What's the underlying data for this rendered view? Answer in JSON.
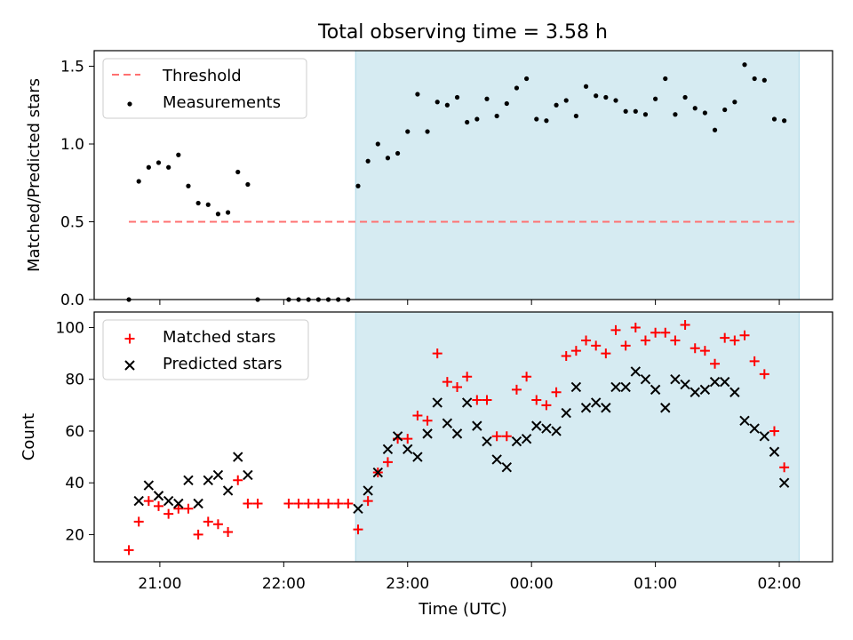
{
  "chart_data": {
    "type": "scatter",
    "title": "Total observing time = 3.58 h",
    "xlabel": "Time (UTC)",
    "x_ticks": [
      "21:00",
      "22:00",
      "23:00",
      "00:00",
      "01:00",
      "02:00"
    ],
    "x_tick_hours": [
      0,
      1,
      2,
      3,
      4,
      5
    ],
    "x_range_hours": [
      -0.53,
      5.43
    ],
    "observing_window_hours": [
      1.58,
      5.16
    ],
    "colors": {
      "threshold": "#ff7070",
      "measurements": "#000000",
      "matched": "#ff0000",
      "predicted": "#000000",
      "window": "#add8e6"
    },
    "panels": [
      {
        "ylabel": "Matched/Predicted stars",
        "ylim": [
          0,
          1.6
        ],
        "y_ticks": [
          "0.0",
          "0.5",
          "1.0",
          "1.5"
        ],
        "y_tick_values": [
          0,
          0.5,
          1.0,
          1.5
        ],
        "legend": [
          "Threshold",
          "Measurements"
        ],
        "threshold": {
          "name": "Threshold",
          "y": 0.5,
          "x_hours": [
            -0.25,
            5.16
          ]
        },
        "series": [
          {
            "name": "Measurements",
            "points": [
              [
                -0.25,
                0.0
              ],
              [
                -0.17,
                0.76
              ],
              [
                -0.09,
                0.85
              ],
              [
                -0.01,
                0.88
              ],
              [
                0.07,
                0.85
              ],
              [
                0.15,
                0.93
              ],
              [
                0.23,
                0.73
              ],
              [
                0.31,
                0.62
              ],
              [
                0.39,
                0.61
              ],
              [
                0.47,
                0.55
              ],
              [
                0.55,
                0.56
              ],
              [
                0.63,
                0.82
              ],
              [
                0.71,
                0.74
              ],
              [
                0.79,
                0.0
              ],
              [
                1.04,
                0.0
              ],
              [
                1.12,
                0.0
              ],
              [
                1.2,
                0.0
              ],
              [
                1.28,
                0.0
              ],
              [
                1.36,
                0.0
              ],
              [
                1.44,
                0.0
              ],
              [
                1.52,
                0.0
              ],
              [
                1.6,
                0.73
              ],
              [
                1.68,
                0.89
              ],
              [
                1.76,
                1.0
              ],
              [
                1.84,
                0.91
              ],
              [
                1.92,
                0.94
              ],
              [
                2.0,
                1.08
              ],
              [
                2.08,
                1.32
              ],
              [
                2.16,
                1.08
              ],
              [
                2.24,
                1.27
              ],
              [
                2.32,
                1.25
              ],
              [
                2.4,
                1.3
              ],
              [
                2.48,
                1.14
              ],
              [
                2.56,
                1.16
              ],
              [
                2.64,
                1.29
              ],
              [
                2.72,
                1.18
              ],
              [
                2.8,
                1.26
              ],
              [
                2.88,
                1.36
              ],
              [
                2.96,
                1.42
              ],
              [
                3.04,
                1.16
              ],
              [
                3.12,
                1.15
              ],
              [
                3.2,
                1.25
              ],
              [
                3.28,
                1.28
              ],
              [
                3.36,
                1.18
              ],
              [
                3.44,
                1.37
              ],
              [
                3.52,
                1.31
              ],
              [
                3.6,
                1.3
              ],
              [
                3.68,
                1.28
              ],
              [
                3.76,
                1.21
              ],
              [
                3.84,
                1.21
              ],
              [
                3.92,
                1.19
              ],
              [
                4.0,
                1.29
              ],
              [
                4.08,
                1.42
              ],
              [
                4.16,
                1.19
              ],
              [
                4.24,
                1.3
              ],
              [
                4.32,
                1.23
              ],
              [
                4.4,
                1.2
              ],
              [
                4.48,
                1.09
              ],
              [
                4.56,
                1.22
              ],
              [
                4.64,
                1.27
              ],
              [
                4.72,
                1.51
              ],
              [
                4.8,
                1.42
              ],
              [
                4.88,
                1.41
              ],
              [
                4.96,
                1.16
              ],
              [
                5.04,
                1.15
              ]
            ]
          }
        ]
      },
      {
        "ylabel": "Count",
        "ylim": [
          9.5,
          106
        ],
        "y_ticks": [
          "20",
          "40",
          "60",
          "80",
          "100"
        ],
        "y_tick_values": [
          20,
          40,
          60,
          80,
          100
        ],
        "legend": [
          "Matched stars",
          "Predicted stars"
        ],
        "series": [
          {
            "name": "Matched stars",
            "marker": "plus",
            "points": [
              [
                -0.25,
                14
              ],
              [
                -0.17,
                25
              ],
              [
                -0.09,
                33
              ],
              [
                -0.01,
                31
              ],
              [
                0.07,
                28
              ],
              [
                0.15,
                30
              ],
              [
                0.23,
                30
              ],
              [
                0.31,
                20
              ],
              [
                0.39,
                25
              ],
              [
                0.47,
                24
              ],
              [
                0.55,
                21
              ],
              [
                0.63,
                41
              ],
              [
                0.71,
                32
              ],
              [
                0.79,
                32
              ],
              [
                1.04,
                32
              ],
              [
                1.12,
                32
              ],
              [
                1.2,
                32
              ],
              [
                1.28,
                32
              ],
              [
                1.36,
                32
              ],
              [
                1.44,
                32
              ],
              [
                1.52,
                32
              ],
              [
                1.6,
                22
              ],
              [
                1.68,
                33
              ],
              [
                1.76,
                44
              ],
              [
                1.84,
                48
              ],
              [
                1.92,
                57
              ],
              [
                2.0,
                57
              ],
              [
                2.08,
                66
              ],
              [
                2.16,
                64
              ],
              [
                2.24,
                90
              ],
              [
                2.32,
                79
              ],
              [
                2.4,
                77
              ],
              [
                2.48,
                81
              ],
              [
                2.56,
                72
              ],
              [
                2.64,
                72
              ],
              [
                2.72,
                58
              ],
              [
                2.8,
                58
              ],
              [
                2.88,
                76
              ],
              [
                2.96,
                81
              ],
              [
                3.04,
                72
              ],
              [
                3.12,
                70
              ],
              [
                3.2,
                75
              ],
              [
                3.28,
                89
              ],
              [
                3.36,
                91
              ],
              [
                3.44,
                95
              ],
              [
                3.52,
                93
              ],
              [
                3.6,
                90
              ],
              [
                3.68,
                99
              ],
              [
                3.76,
                93
              ],
              [
                3.84,
                100
              ],
              [
                3.92,
                95
              ],
              [
                4.0,
                98
              ],
              [
                4.08,
                98
              ],
              [
                4.16,
                95
              ],
              [
                4.24,
                101
              ],
              [
                4.32,
                92
              ],
              [
                4.4,
                91
              ],
              [
                4.48,
                86
              ],
              [
                4.56,
                96
              ],
              [
                4.64,
                95
              ],
              [
                4.72,
                97
              ],
              [
                4.8,
                87
              ],
              [
                4.88,
                82
              ],
              [
                4.96,
                60
              ],
              [
                5.04,
                46
              ]
            ]
          },
          {
            "name": "Predicted stars",
            "marker": "x",
            "points": [
              [
                -0.17,
                33
              ],
              [
                -0.09,
                39
              ],
              [
                -0.01,
                35
              ],
              [
                0.07,
                33
              ],
              [
                0.15,
                32
              ],
              [
                0.23,
                41
              ],
              [
                0.31,
                32
              ],
              [
                0.39,
                41
              ],
              [
                0.47,
                43
              ],
              [
                0.55,
                37
              ],
              [
                0.63,
                50
              ],
              [
                0.71,
                43
              ],
              [
                1.6,
                30
              ],
              [
                1.68,
                37
              ],
              [
                1.76,
                44
              ],
              [
                1.84,
                53
              ],
              [
                1.92,
                58
              ],
              [
                2.0,
                53
              ],
              [
                2.08,
                50
              ],
              [
                2.16,
                59
              ],
              [
                2.24,
                71
              ],
              [
                2.32,
                63
              ],
              [
                2.4,
                59
              ],
              [
                2.48,
                71
              ],
              [
                2.56,
                62
              ],
              [
                2.64,
                56
              ],
              [
                2.72,
                49
              ],
              [
                2.8,
                46
              ],
              [
                2.88,
                56
              ],
              [
                2.96,
                57
              ],
              [
                3.04,
                62
              ],
              [
                3.12,
                61
              ],
              [
                3.2,
                60
              ],
              [
                3.28,
                67
              ],
              [
                3.36,
                77
              ],
              [
                3.44,
                69
              ],
              [
                3.52,
                71
              ],
              [
                3.6,
                69
              ],
              [
                3.68,
                77
              ],
              [
                3.76,
                77
              ],
              [
                3.84,
                83
              ],
              [
                3.92,
                80
              ],
              [
                4.0,
                76
              ],
              [
                4.08,
                69
              ],
              [
                4.16,
                80
              ],
              [
                4.24,
                78
              ],
              [
                4.32,
                75
              ],
              [
                4.4,
                76
              ],
              [
                4.48,
                79
              ],
              [
                4.56,
                79
              ],
              [
                4.64,
                75
              ],
              [
                4.72,
                64
              ],
              [
                4.8,
                61
              ],
              [
                4.88,
                58
              ],
              [
                4.96,
                52
              ],
              [
                5.04,
                40
              ]
            ]
          }
        ]
      }
    ]
  }
}
